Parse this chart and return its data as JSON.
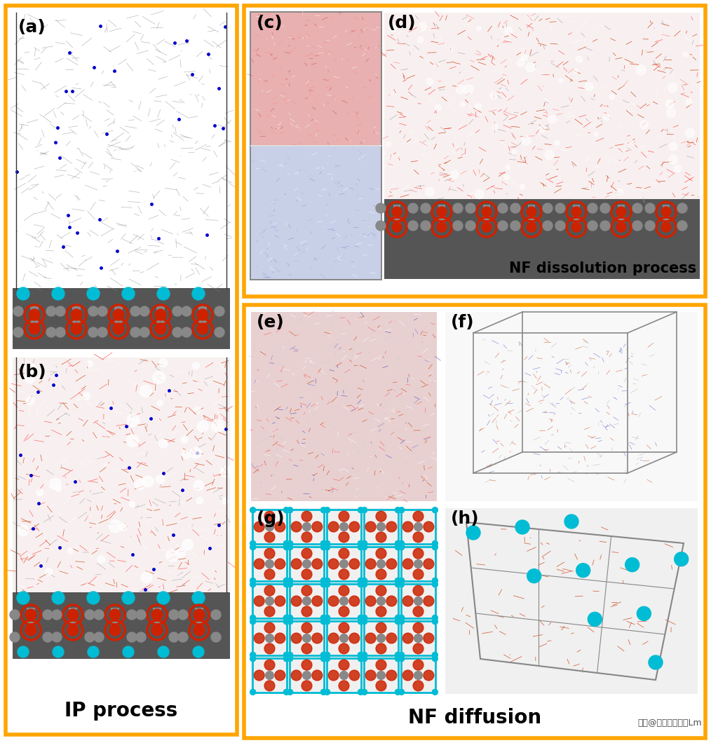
{
  "fig_width": 10.14,
  "fig_height": 10.6,
  "fig_bg": "#ffffff",
  "border_color": "#FFA500",
  "border_lw": 4,
  "label_fontsize": 18,
  "label_bold": true,
  "caption_fontsize": 20,
  "caption_bold": true,
  "panel_labels": [
    "(a)",
    "(b)",
    "(c)",
    "(d)",
    "(e)",
    "(f)",
    "(g)",
    "(h)"
  ],
  "panel_a_colors": {
    "top": "#c8c8c8",
    "bottom_membrane": "#cc2200",
    "bottom_bg": "#555555",
    "cyan_dots": "#00bcd4",
    "accent": "#1a1aff"
  },
  "panel_b_colors": {
    "main": "#cc3300",
    "bg": "#f5e8e8",
    "membrane": "#cc2200",
    "bottom_bg": "#555555",
    "cyan_dots": "#00bcd4"
  },
  "panel_c_colors": {
    "top": "#e8b0b0",
    "bottom": "#c0c8e0"
  },
  "panel_d_colors": {
    "top": "#e8b0b0",
    "membrane": "#cc2200",
    "bottom_bg": "#555555"
  },
  "panel_e_colors": {
    "mixed": "#d4a0a0"
  },
  "panel_f_colors": {
    "wireframe": "#cc5555",
    "bg": "#f8f8f8"
  },
  "panel_g_colors": {
    "frame": "#00bcd4",
    "cross": "#cc3300",
    "bg": "#f8f8f8"
  },
  "panel_h_colors": {
    "spheres": "#00bcd4",
    "lines": "#cc3300",
    "bg": "#f8f8f8"
  },
  "box1_caption": "IP process",
  "box2_caption_1": "NF dissolution process",
  "box3_caption": "NF diffusion",
  "watermark": "头条@博学的技术家Lm"
}
